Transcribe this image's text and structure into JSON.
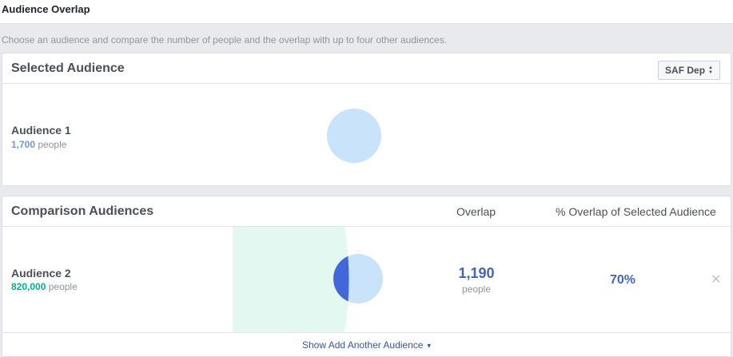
{
  "header": {
    "title": "Audience Overlap"
  },
  "description": "Choose an audience and compare the number of people and the overlap with up to four other audiences.",
  "selected": {
    "title": "Selected Audience",
    "dropdown_label": "SAF Dep",
    "audience_name": "Audience 1",
    "audience_count": "1,700",
    "audience_unit": "people",
    "circle_color": "#c9e3fa"
  },
  "comparison": {
    "title": "Comparison Audiences",
    "col_overlap": "Overlap",
    "col_pct": "% Overlap of Selected Audience",
    "rows": [
      {
        "name": "Audience 2",
        "count": "820,000",
        "unit": "people",
        "overlap_value": "1,190",
        "overlap_unit": "people",
        "pct": "70%",
        "count_color": "#00b386",
        "large_circle_color": "#e3f8f1",
        "small_circle_color": "#c9e3fa",
        "overlap_color": "#4267d8"
      }
    ],
    "add_link": "Show Add Another Audience"
  },
  "icons": {
    "dropdown": "updown-arrows-icon",
    "remove": "close-icon",
    "add_link_caret": "caret-down-icon"
  }
}
